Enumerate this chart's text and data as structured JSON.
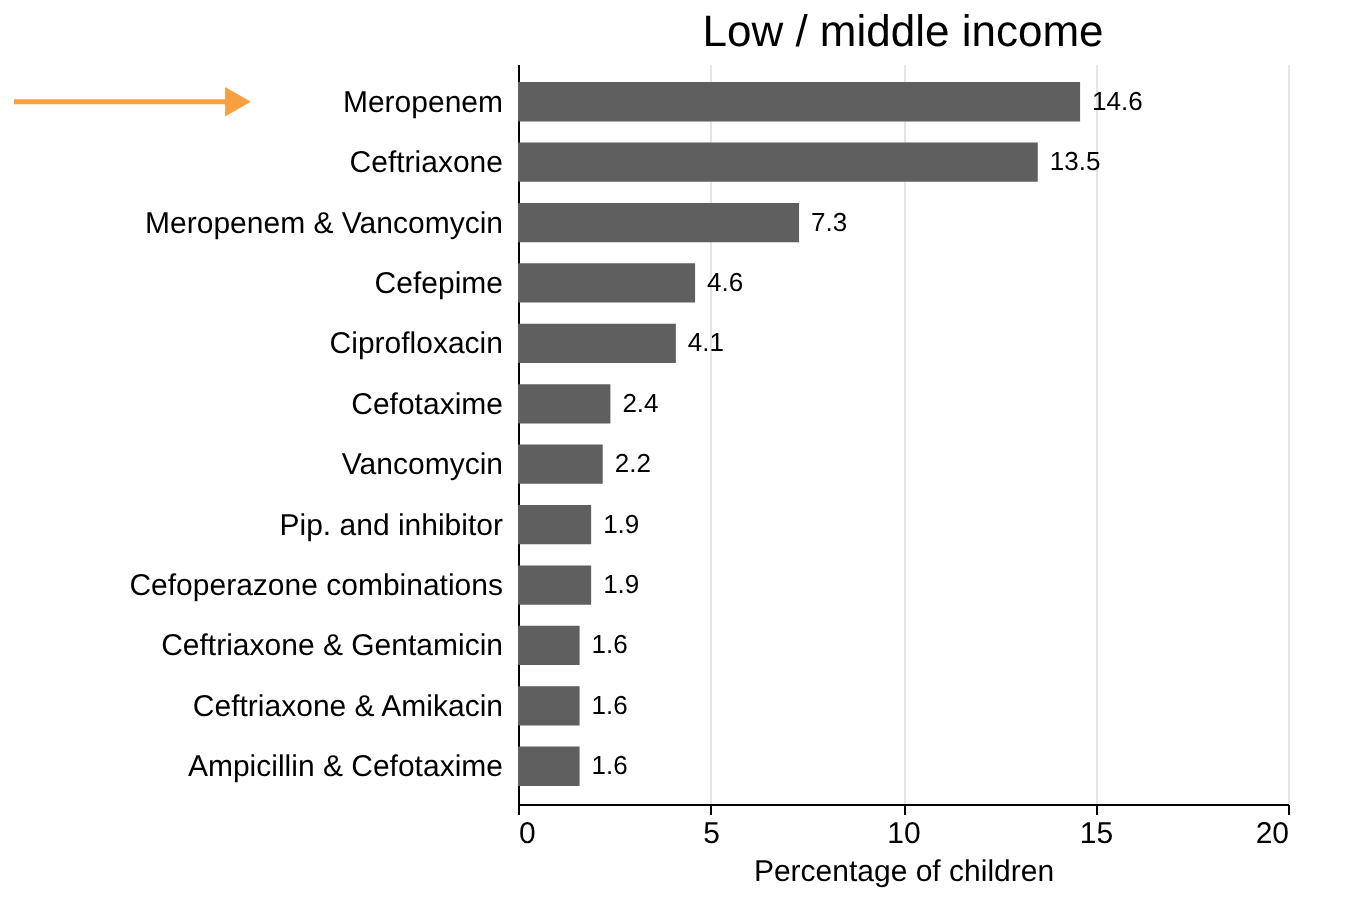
{
  "chart_data": {
    "type": "bar",
    "orientation": "horizontal",
    "title": "Low / middle income",
    "xlabel": "Percentage of children",
    "categories": [
      "Meropenem",
      "Ceftriaxone",
      "Meropenem & Vancomycin",
      "Cefepime",
      "Ciprofloxacin",
      "Cefotaxime",
      "Vancomycin",
      "Pip. and inhibitor",
      "Cefoperazone combinations",
      "Ceftriaxone & Gentamicin",
      "Ceftriaxone & Amikacin",
      "Ampicillin & Cefotaxime"
    ],
    "values": [
      14.6,
      13.5,
      7.3,
      4.6,
      4.1,
      2.4,
      2.2,
      1.9,
      1.9,
      1.6,
      1.6,
      1.6
    ],
    "color": "#5f5f5f",
    "xlim": [
      0,
      20
    ],
    "xticks": [
      0,
      5,
      10,
      15,
      20
    ],
    "grid": "x",
    "data_labels": true
  }
}
